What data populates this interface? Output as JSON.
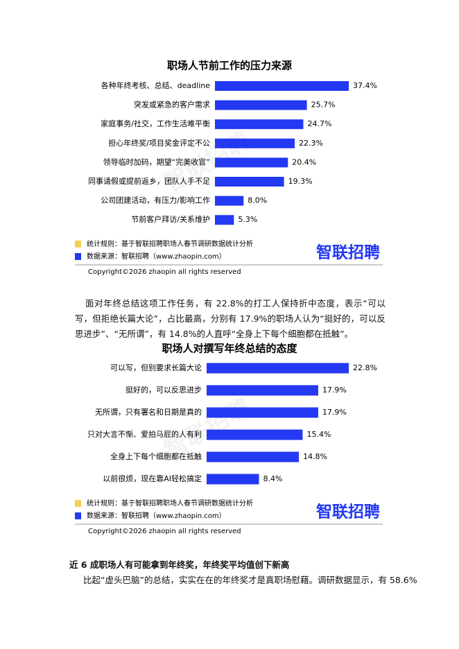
{
  "chart_data": [
    {
      "type": "bar",
      "orientation": "horizontal",
      "title": "职场人节前工作的压力来源",
      "categories": [
        "各种年终考核、总结、deadline",
        "突发或紧急的客户需求",
        "家庭事务/社交，工作生活难平衡",
        "担心年终奖/项目奖金评定不公",
        "领导临时加码，期望“完美收官”",
        "同事请假或提前返乡，团队人手不足",
        "公司团建活动，有压力/影响工作",
        "节前客户拜访/关系维护"
      ],
      "values": [
        37.4,
        25.7,
        24.7,
        22.3,
        20.4,
        19.3,
        8.0,
        5.3
      ],
      "value_labels": [
        "37.4%",
        "25.7%",
        "24.7%",
        "22.3%",
        "20.4%",
        "19.3%",
        "8.0%",
        "5.3%"
      ],
      "color": "#2439f2"
    },
    {
      "type": "bar",
      "orientation": "horizontal",
      "title": "职场人对撰写年终总结的态度",
      "categories": [
        "可以写，但别要求长篇大论",
        "挺好的，可以反思进步",
        "无所谓，只有署名和日期是真的",
        "只对大言不惭、爱拍马屁的人有利",
        "全身上下每个细胞都在抵触",
        "以前很烦，现在靠AI轻松搞定"
      ],
      "values": [
        22.8,
        17.9,
        17.9,
        15.4,
        14.8,
        8.4
      ],
      "value_labels": [
        "22.8%",
        "17.9%",
        "17.9%",
        "15.4%",
        "14.8%",
        "8.4%"
      ],
      "color": "#2439f2"
    }
  ],
  "notes": [
    {
      "rule": "统计规则：基于智联招聘职场人春节调研数据统计分析",
      "source": "数据来源：智联招聘（www.zhaopin.com）",
      "logo": "智联招聘",
      "copyright": "Copyright©2026 zhaopin all rights reserved"
    },
    {
      "rule": "统计规则：基于智联招聘职场人春节调研数据统计分析",
      "source": "数据来源：智联招聘（www.zhaopin.com）",
      "logo": "智联招聘",
      "copyright": "Copyright©2026 zhaopin all rights reserved"
    }
  ],
  "watermark": "智联招聘",
  "body": {
    "paragraph1": "面对年终总结这项工作任务，有 22.8%的打工人保持折中态度，表示“可以写，但拒绝长篇大论”，占比最高，分别有 17.9%的职场人认为“挺好的，可以反思进步”、“无所谓”，有 14.8%的人直呼“全身上下每个细胞都在抵触”。",
    "heading": "近 6 成职场人有可能拿到年终奖，年终奖平均值创下新高",
    "paragraph2": "比起“虚头巴脑”的总结，实实在在的年终奖才是真职场慰藉。调研数据显示，有 58.6%"
  }
}
